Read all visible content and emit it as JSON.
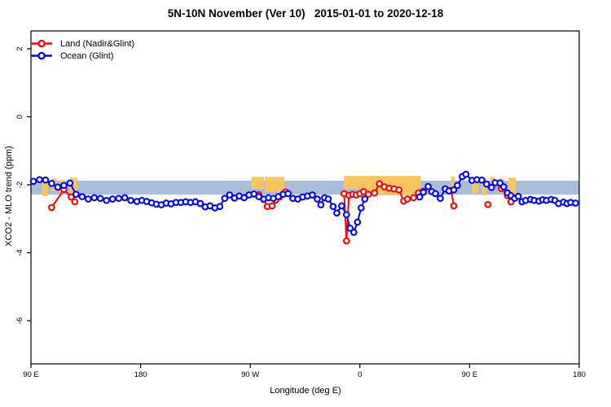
{
  "title": "5N-10N November (Ver 10)   2015-01-01 to 2020-12-18",
  "chart_data": {
    "type": "line",
    "title": "5N-10N November (Ver 10)   2015-01-01 to 2020-12-18",
    "xlabel": "Longitude (deg E)",
    "ylabel": "XCO2 - MLO trend (ppm)",
    "x_axis": {
      "note": "longitude axis wraps: 90E..180..90W..0..90E..180 (450 deg span)",
      "range_deg": [
        90,
        540
      ],
      "ticks": [
        {
          "deg": 90,
          "label": "90 E"
        },
        {
          "deg": 180,
          "label": "180"
        },
        {
          "deg": 270,
          "label": "90 W"
        },
        {
          "deg": 360,
          "label": "0"
        },
        {
          "deg": 450,
          "label": "90 E"
        },
        {
          "deg": 540,
          "label": "180"
        }
      ]
    },
    "y_axis": {
      "range": [
        -7.27,
        2.53
      ],
      "ticks": [
        {
          "value": 2,
          "label": "2"
        },
        {
          "value": 0,
          "label": "0"
        },
        {
          "value": -2,
          "label": "-2"
        },
        {
          "value": -4,
          "label": "-4"
        },
        {
          "value": -6,
          "label": "-6"
        }
      ]
    },
    "legend": {
      "position": "top-left",
      "items": [
        {
          "label": "Land (Nadir&Glint)",
          "color": "#ff0000"
        },
        {
          "label": "Ocean (Glint)",
          "color": "#0000ff"
        }
      ]
    },
    "colors": {
      "land_series": "#ff0000",
      "ocean_series": "#0000ff",
      "ocean_band": "#a9bdd9",
      "land_band": "#f8c55e",
      "axis": "#000000"
    },
    "ocean_reference_band": {
      "v_top": -1.88,
      "v_bottom": -2.29
    },
    "land_reference_band_segments": [
      {
        "from_deg": 99,
        "to_deg": 104,
        "v_top": -1.93,
        "v_bottom": -2.33
      },
      {
        "from_deg": 107,
        "to_deg": 111,
        "v_top": -1.81,
        "v_bottom": -2.19
      },
      {
        "from_deg": 114,
        "to_deg": 118,
        "v_top": -1.86,
        "v_bottom": -2.26
      },
      {
        "from_deg": 122,
        "to_deg": 128,
        "v_top": -1.79,
        "v_bottom": -2.29
      },
      {
        "from_deg": 271,
        "to_deg": 281,
        "v_top": -1.77,
        "v_bottom": -2.12
      },
      {
        "from_deg": 282,
        "to_deg": 298,
        "v_top": -1.77,
        "v_bottom": -2.21
      },
      {
        "from_deg": 347,
        "to_deg": 364,
        "v_top": -1.74,
        "v_bottom": -2.12
      },
      {
        "from_deg": 364,
        "to_deg": 410,
        "v_top": -1.74,
        "v_bottom": -2.31
      },
      {
        "from_deg": 435,
        "to_deg": 438,
        "v_top": -1.77,
        "v_bottom": -2.05
      },
      {
        "from_deg": 452,
        "to_deg": 457,
        "v_top": -1.81,
        "v_bottom": -2.26
      },
      {
        "from_deg": 460,
        "to_deg": 464,
        "v_top": -1.81,
        "v_bottom": -2.31
      },
      {
        "from_deg": 467,
        "to_deg": 471,
        "v_top": -1.77,
        "v_bottom": -2.14
      },
      {
        "from_deg": 474,
        "to_deg": 478,
        "v_top": -1.81,
        "v_bottom": -2.24
      },
      {
        "from_deg": 482,
        "to_deg": 488,
        "v_top": -1.79,
        "v_bottom": -2.29
      }
    ],
    "series": [
      {
        "name": "Land (Nadir&Glint)",
        "color": "#ff0000",
        "segments": [
          [
            [
              107,
              -2.67
            ],
            [
              117,
              -2.14
            ],
            [
              123,
              -2.36
            ],
            [
              126,
              -2.5
            ]
          ],
          [
            [
              277,
              -2.29
            ],
            [
              281,
              -2.43
            ],
            [
              284,
              -2.64
            ],
            [
              288,
              -2.62
            ],
            [
              291,
              -2.45
            ],
            [
              294,
              -2.36
            ],
            [
              299,
              -2.21
            ]
          ],
          [
            [
              347,
              -2.26
            ],
            [
              349,
              -3.65
            ],
            [
              351,
              -2.31
            ],
            [
              354,
              -2.28
            ],
            [
              357,
              -2.3
            ],
            [
              360,
              -2.26
            ],
            [
              363,
              -2.2
            ],
            [
              367,
              -2.28
            ],
            [
              372,
              -2.24
            ],
            [
              376,
              -1.97
            ],
            [
              380,
              -2.06
            ],
            [
              384,
              -2.1
            ],
            [
              388,
              -2.12
            ],
            [
              392,
              -2.15
            ],
            [
              396,
              -2.48
            ],
            [
              399,
              -2.42
            ],
            [
              404,
              -2.38
            ],
            [
              408,
              -2.24
            ],
            [
              412,
              -2.19
            ]
          ],
          [
            [
              435,
              -2.17
            ],
            [
              437,
              -2.62
            ]
          ],
          [
            [
              465,
              -2.58
            ]
          ],
          [
            [
              476,
              -2.11
            ],
            [
              481,
              -2.32
            ],
            [
              484,
              -2.5
            ]
          ]
        ]
      },
      {
        "name": "Ocean (Glint)",
        "color": "#0000ff",
        "segments": [
          [
            [
              92,
              -1.9
            ],
            [
              97,
              -1.85
            ],
            [
              102,
              -1.86
            ],
            [
              107,
              -1.96
            ],
            [
              112,
              -2.07
            ],
            [
              117,
              -2.02
            ],
            [
              122,
              -1.95
            ],
            [
              127,
              -2.28
            ],
            [
              132,
              -2.35
            ],
            [
              137,
              -2.42
            ],
            [
              142,
              -2.38
            ],
            [
              147,
              -2.4
            ],
            [
              152,
              -2.46
            ],
            [
              157,
              -2.42
            ],
            [
              162,
              -2.4
            ],
            [
              167,
              -2.38
            ],
            [
              172,
              -2.46
            ],
            [
              177,
              -2.49
            ],
            [
              181,
              -2.46
            ],
            [
              185,
              -2.49
            ],
            [
              189,
              -2.53
            ],
            [
              193,
              -2.57
            ],
            [
              197,
              -2.59
            ],
            [
              201,
              -2.54
            ],
            [
              205,
              -2.56
            ],
            [
              209,
              -2.52
            ],
            [
              213,
              -2.52
            ],
            [
              217,
              -2.5
            ],
            [
              221,
              -2.52
            ],
            [
              225,
              -2.5
            ],
            [
              229,
              -2.55
            ],
            [
              233,
              -2.65
            ],
            [
              237,
              -2.62
            ],
            [
              241,
              -2.68
            ],
            [
              245,
              -2.64
            ],
            [
              249,
              -2.4
            ],
            [
              253,
              -2.3
            ],
            [
              257,
              -2.39
            ],
            [
              261,
              -2.33
            ],
            [
              265,
              -2.38
            ],
            [
              269,
              -2.3
            ],
            [
              273,
              -2.27
            ],
            [
              277,
              -2.35
            ],
            [
              281,
              -2.42
            ],
            [
              285,
              -2.38
            ],
            [
              289,
              -2.4
            ],
            [
              293,
              -2.35
            ],
            [
              297,
              -2.28
            ],
            [
              301,
              -2.26
            ],
            [
              305,
              -2.4
            ],
            [
              309,
              -2.42
            ],
            [
              313,
              -2.36
            ],
            [
              317,
              -2.33
            ],
            [
              321,
              -2.3
            ],
            [
              325,
              -2.42
            ],
            [
              328,
              -2.59
            ],
            [
              331,
              -2.38
            ],
            [
              334,
              -2.42
            ],
            [
              338,
              -2.64
            ],
            [
              341,
              -2.83
            ],
            [
              345,
              -2.62
            ],
            [
              349,
              -2.88
            ],
            [
              352,
              -3.28
            ],
            [
              355,
              -3.4
            ],
            [
              358,
              -3.1
            ],
            [
              361,
              -2.68
            ],
            [
              364,
              -2.42
            ]
          ],
          [
            [
              409,
              -2.36
            ],
            [
              412,
              -2.22
            ],
            [
              416,
              -2.05
            ],
            [
              419,
              -2.2
            ],
            [
              422,
              -2.26
            ],
            [
              426,
              -2.4
            ],
            [
              430,
              -2.12
            ],
            [
              433,
              -2.18
            ],
            [
              437,
              -2.15
            ],
            [
              440,
              -2.02
            ],
            [
              444,
              -1.76
            ],
            [
              447,
              -1.69
            ],
            [
              452,
              -1.87
            ],
            [
              456,
              -1.85
            ],
            [
              460,
              -1.86
            ],
            [
              464,
              -1.98
            ],
            [
              468,
              -2.08
            ],
            [
              471,
              -1.94
            ],
            [
              475,
              -1.95
            ],
            [
              478,
              -2.06
            ],
            [
              481,
              -2.24
            ],
            [
              484,
              -2.32
            ],
            [
              487,
              -2.4
            ],
            [
              490,
              -2.34
            ],
            [
              493,
              -2.5
            ],
            [
              496,
              -2.46
            ],
            [
              500,
              -2.43
            ],
            [
              503,
              -2.46
            ],
            [
              507,
              -2.48
            ],
            [
              510,
              -2.44
            ],
            [
              513,
              -2.46
            ],
            [
              517,
              -2.43
            ],
            [
              520,
              -2.46
            ],
            [
              523,
              -2.55
            ],
            [
              527,
              -2.51
            ],
            [
              530,
              -2.55
            ],
            [
              533,
              -2.52
            ],
            [
              537,
              -2.54
            ]
          ]
        ]
      }
    ]
  }
}
